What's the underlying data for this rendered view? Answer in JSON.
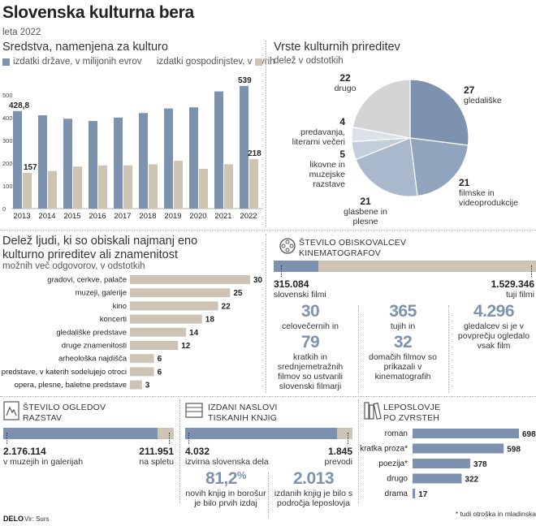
{
  "header": {
    "title": "Slovenska kulturna bera",
    "subtitle": "leta 2022"
  },
  "funding": {
    "title": "Sredstva, namenjena za kulturo",
    "legend_state": "izdatki države, v milijonih evrov",
    "legend_household": "izdatki gospodinjstev, v evrih",
    "label_first_state": "428,8",
    "label_first_household": "157",
    "label_last_state": "539",
    "label_last_household": "218"
  },
  "events": {
    "title": "Vrste kulturnih prireditev",
    "subtitle": "delež v odstotkih",
    "slices": [
      {
        "value": "27",
        "label": "gledališke"
      },
      {
        "value": "21",
        "label": "filmske in videoprodukcije"
      },
      {
        "value": "21",
        "label": "glasbene in plesne"
      },
      {
        "value": "5",
        "label": "likovne in muzejske razstave"
      },
      {
        "value": "4",
        "label": "predavanja, literarni večeri"
      },
      {
        "value": "22",
        "label": "drugo"
      }
    ]
  },
  "attendance": {
    "title_line1": "Delež ljudi, ki so obiskali najmanj eno",
    "title_line2": "kulturno prireditev ali znamenitost",
    "subtitle": "možnih več odgovorov, v odstotkih",
    "labels": [
      "gradovi, cerkve, palače",
      "muzeji, galerije",
      "kino",
      "koncerti",
      "gledališke predstave",
      "druge znamenitosti",
      "arheološka najdišča",
      "predstave, v katerih sodelujejo otroci",
      "opera, plesne, baletne predstave"
    ],
    "values": [
      "30",
      "25",
      "22",
      "18",
      "14",
      "12",
      "6",
      "6",
      "3"
    ]
  },
  "cinema": {
    "title_line1": "ŠTEVILO OBISKOVALCEV",
    "title_line2": "KINEMATOGRAFOV",
    "slo_value": "315.084",
    "slo_label": "slovenski filmi",
    "foreign_value": "1.529.346",
    "foreign_label": "tuji filmi",
    "stats": [
      {
        "num": "30",
        "text": "celovečernih in"
      },
      {
        "num": "79",
        "text": "kratkih in srednjemetražnih filmov so ustvarili slovenski filmarji"
      },
      {
        "num": "365",
        "text": "tujih in"
      },
      {
        "num": "32",
        "text": "domačih filmov so prikazali v kinematografih"
      },
      {
        "num": "4.296",
        "text": "gledalcev si je v povprečju ogledalo vsak film"
      }
    ]
  },
  "exhibitions": {
    "title_line1": "ŠTEVILO OGLEDOV",
    "title_line2": "RAZSTAV",
    "museum_value": "2.176.114",
    "museum_label": "v muzejih in galerijah",
    "online_value": "211.951",
    "online_label": "na spletu"
  },
  "books": {
    "title_line1": "IZDANI NASLOVI",
    "title_line2": "TISKANIH KNJIG",
    "slo_value": "4.032",
    "slo_label": "izvirna slovenska dela",
    "trans_value": "1.845",
    "trans_label": "prevodi",
    "stat1_num": "81,2",
    "stat1_unit": "%",
    "stat1_text": "novih knjig in borošur je bilo prvih izdaj",
    "stat2_num": "2.013",
    "stat2_text": "izdanih knjig je bilo s področja leposlovja"
  },
  "fiction": {
    "title_line1": "LEPOSLOVJE",
    "title_line2": "PO ZVRSTEH",
    "labels": [
      "roman",
      "kratka proza*",
      "poezija*",
      "drugo",
      "drama"
    ],
    "values": [
      "698",
      "598",
      "378",
      "322",
      "17"
    ],
    "footnote": "* tudi otroška in mladinska"
  },
  "footer": {
    "brand": "DELO",
    "source": "Vir: Surs"
  },
  "chart_data": [
    {
      "type": "bar",
      "title": "Sredstva, namenjena za kulturo",
      "categories": [
        "2013",
        "2014",
        "2015",
        "2016",
        "2017",
        "2018",
        "2019",
        "2020",
        "2021",
        "2022"
      ],
      "series": [
        {
          "name": "izdatki države, v milijonih evrov",
          "values": [
            428.8,
            410,
            395,
            385,
            400,
            420,
            440,
            445,
            515,
            539
          ]
        },
        {
          "name": "izdatki gospodinjstev, v evrih",
          "values": [
            157,
            165,
            185,
            190,
            190,
            195,
            210,
            175,
            195,
            218
          ]
        }
      ],
      "ylim": [
        0,
        560
      ],
      "yticks": [
        "0",
        "100",
        "200",
        "300",
        "400",
        "500"
      ],
      "colors": {
        "state": "#7c92ae",
        "household": "#cdc4b4"
      }
    },
    {
      "type": "pie",
      "title": "Vrste kulturnih prireditev",
      "categories": [
        "gledališke",
        "filmske in videoprodukcije",
        "glasbene in plesne",
        "likovne in muzejske razstave",
        "predavanja, literarni večeri",
        "drugo"
      ],
      "values": [
        27,
        21,
        21,
        5,
        4,
        22
      ],
      "colors": [
        "#7c92ae",
        "#90a4be",
        "#a9b8cb",
        "#c3cedb",
        "#dbe2ea",
        "#d4d4d4"
      ]
    },
    {
      "type": "bar",
      "title": "Delež ljudi, ki so obiskali najmanj eno kulturno prireditev ali znamenitost",
      "categories": [
        "gradovi, cerkve, palače",
        "muzeji, galerije",
        "kino",
        "koncerti",
        "gledališke predstave",
        "druge znamenitosti",
        "arheološka najdišča",
        "predstave, v katerih sodelujejo otroci",
        "opera, plesne, baletne predstave"
      ],
      "values": [
        30,
        25,
        22,
        18,
        14,
        12,
        6,
        6,
        3
      ],
      "xlim": [
        0,
        30
      ]
    },
    {
      "type": "bar",
      "title": "LEPOSLOVJE PO ZVRSTEH",
      "categories": [
        "roman",
        "kratka proza*",
        "poezija*",
        "drugo",
        "drama"
      ],
      "values": [
        698,
        598,
        378,
        322,
        17
      ],
      "xlim": [
        0,
        698
      ]
    }
  ]
}
